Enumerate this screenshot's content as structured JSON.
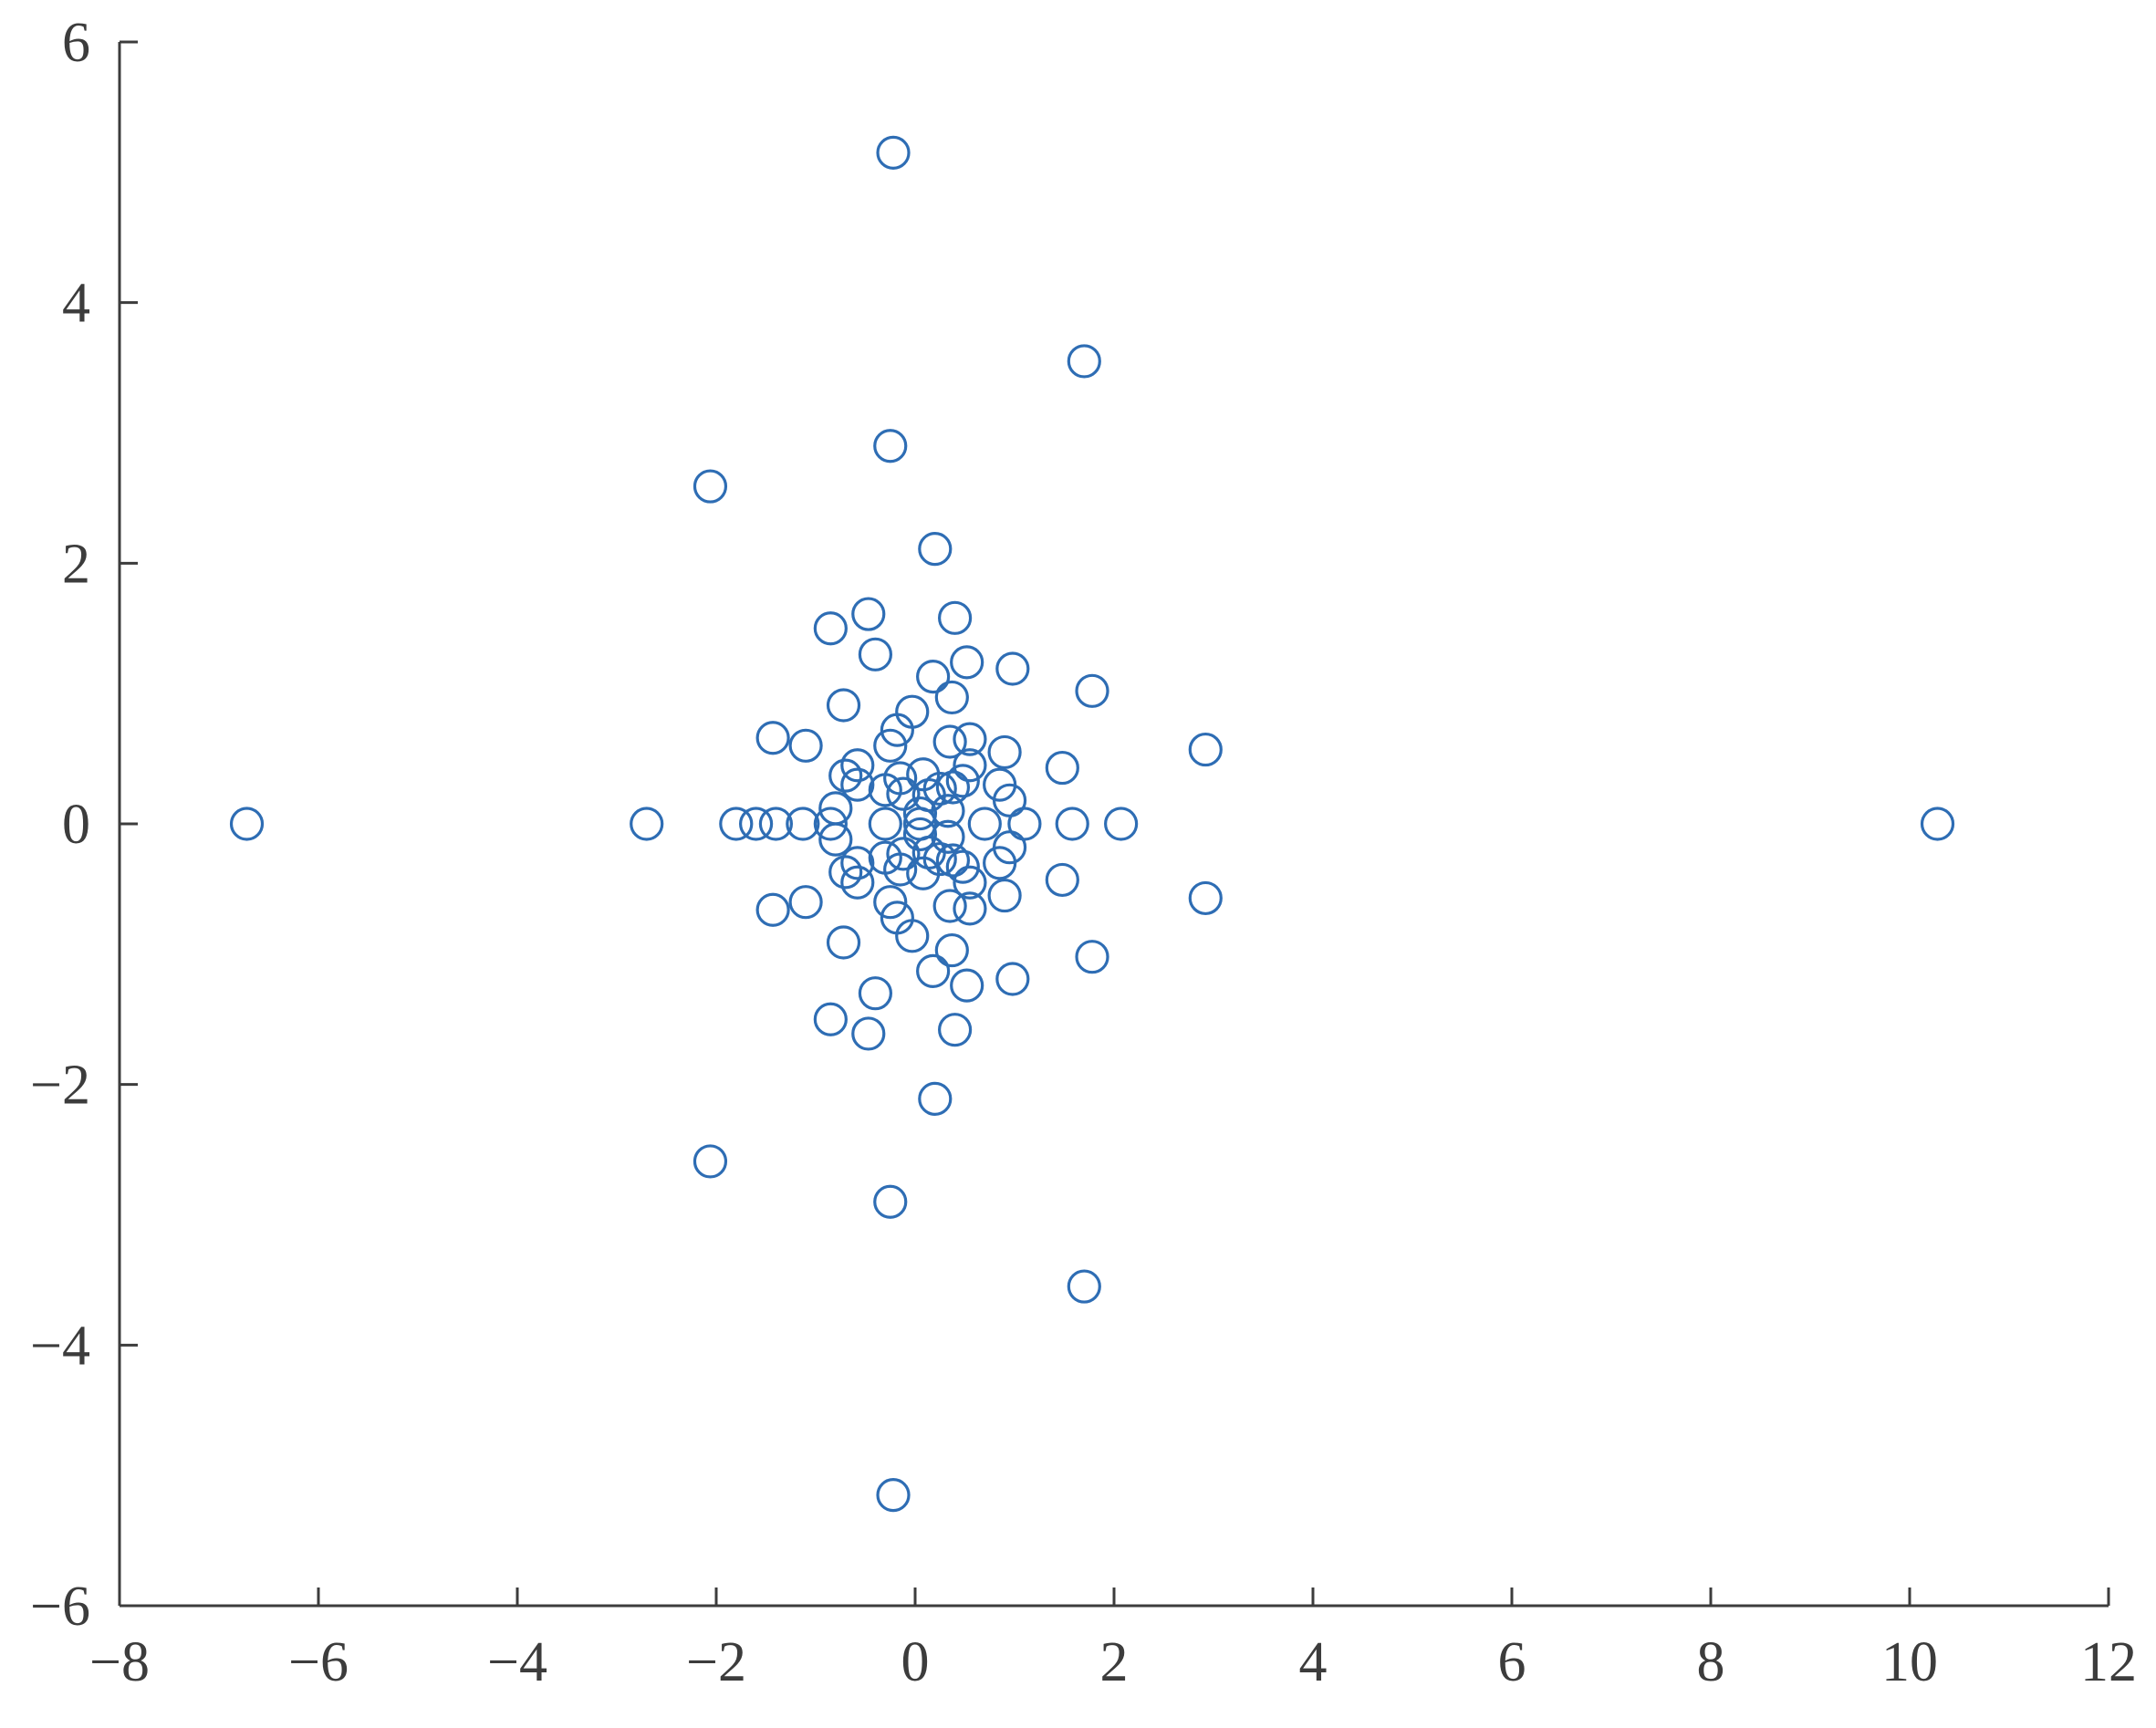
{
  "chart_data": {
    "type": "scatter",
    "title": "",
    "xlabel": "",
    "ylabel": "",
    "xlim": [
      -8,
      12
    ],
    "ylim": [
      -6,
      6
    ],
    "x_ticks": [
      -8,
      -6,
      -4,
      -2,
      0,
      2,
      4,
      6,
      8,
      10,
      12
    ],
    "y_ticks": [
      -6,
      -4,
      -2,
      0,
      2,
      4,
      6
    ],
    "x_tick_labels": [
      "−8",
      "−6",
      "−4",
      "−2",
      "0",
      "2",
      "4",
      "6",
      "8",
      "10",
      "12"
    ],
    "y_tick_labels": [
      "−6",
      "−4",
      "−2",
      "0",
      "2",
      "4",
      "6"
    ],
    "grid": false,
    "marker": "open-circle",
    "marker_color": "#2e6db4",
    "axis_color": "#3c3c3c",
    "series": [
      {
        "points": [
          [
            -6.72,
            0
          ],
          [
            -2.7,
            0
          ],
          [
            -1.8,
            0
          ],
          [
            -1.6,
            0
          ],
          [
            -1.4,
            0
          ],
          [
            -1.13,
            0
          ],
          [
            10.28,
            0
          ],
          [
            2.07,
            0
          ],
          [
            1.58,
            0
          ],
          [
            1.1,
            0
          ],
          [
            0.7,
            0
          ],
          [
            -0.3,
            0
          ],
          [
            -0.85,
            0
          ],
          [
            0.05,
            0
          ],
          [
            -0.22,
            5.15
          ],
          [
            -0.22,
            -5.15
          ],
          [
            1.7,
            3.55
          ],
          [
            1.7,
            -3.55
          ],
          [
            -0.25,
            2.9
          ],
          [
            -0.25,
            -2.9
          ],
          [
            -2.06,
            2.59
          ],
          [
            -2.06,
            -2.59
          ],
          [
            0.2,
            2.11
          ],
          [
            0.2,
            -2.11
          ],
          [
            -0.47,
            1.61
          ],
          [
            -0.47,
            -1.61
          ],
          [
            0.4,
            1.58
          ],
          [
            0.4,
            -1.58
          ],
          [
            -0.85,
            1.5
          ],
          [
            -0.85,
            -1.5
          ],
          [
            -0.4,
            1.3
          ],
          [
            -0.4,
            -1.3
          ],
          [
            0.52,
            1.24
          ],
          [
            0.52,
            -1.24
          ],
          [
            0.98,
            1.19
          ],
          [
            0.98,
            -1.19
          ],
          [
            0.18,
            1.13
          ],
          [
            0.18,
            -1.13
          ],
          [
            1.78,
            1.02
          ],
          [
            1.78,
            -1.02
          ],
          [
            0.37,
            0.97
          ],
          [
            0.37,
            -0.97
          ],
          [
            -0.72,
            0.91
          ],
          [
            -0.72,
            -0.91
          ],
          [
            -0.03,
            0.86
          ],
          [
            -0.03,
            -0.86
          ],
          [
            -0.18,
            0.72
          ],
          [
            -0.18,
            -0.72
          ],
          [
            0.55,
            0.65
          ],
          [
            0.55,
            -0.65
          ],
          [
            -1.43,
            0.66
          ],
          [
            -1.43,
            -0.66
          ],
          [
            -1.1,
            0.6
          ],
          [
            -1.1,
            -0.6
          ],
          [
            0.35,
            0.63
          ],
          [
            0.35,
            -0.63
          ],
          [
            -0.25,
            0.6
          ],
          [
            -0.25,
            -0.6
          ],
          [
            2.92,
            0.57
          ],
          [
            2.92,
            -0.57
          ],
          [
            0.9,
            0.55
          ],
          [
            0.9,
            -0.55
          ],
          [
            0.55,
            0.45
          ],
          [
            0.55,
            -0.45
          ],
          [
            1.48,
            0.43
          ],
          [
            1.48,
            -0.43
          ],
          [
            -0.58,
            0.45
          ],
          [
            -0.58,
            -0.45
          ],
          [
            0.08,
            0.38
          ],
          [
            0.08,
            -0.38
          ],
          [
            -0.7,
            0.37
          ],
          [
            -0.7,
            -0.37
          ],
          [
            -0.15,
            0.35
          ],
          [
            -0.15,
            -0.35
          ],
          [
            0.48,
            0.33
          ],
          [
            0.48,
            -0.33
          ],
          [
            -0.58,
            0.3
          ],
          [
            -0.58,
            -0.3
          ],
          [
            0.85,
            0.3
          ],
          [
            0.85,
            -0.3
          ],
          [
            0.25,
            0.27
          ],
          [
            0.25,
            -0.27
          ],
          [
            -0.3,
            0.26
          ],
          [
            -0.3,
            -0.26
          ],
          [
            0.38,
            0.28
          ],
          [
            0.38,
            -0.28
          ],
          [
            -0.12,
            0.23
          ],
          [
            -0.12,
            -0.23
          ],
          [
            0.14,
            0.22
          ],
          [
            0.14,
            -0.22
          ],
          [
            0.95,
            0.18
          ],
          [
            0.95,
            -0.18
          ],
          [
            -0.8,
            0.12
          ],
          [
            -0.8,
            -0.12
          ],
          [
            0.33,
            0.1
          ],
          [
            0.33,
            -0.1
          ],
          [
            0.05,
            0.08
          ],
          [
            0.05,
            -0.08
          ]
        ]
      }
    ]
  }
}
